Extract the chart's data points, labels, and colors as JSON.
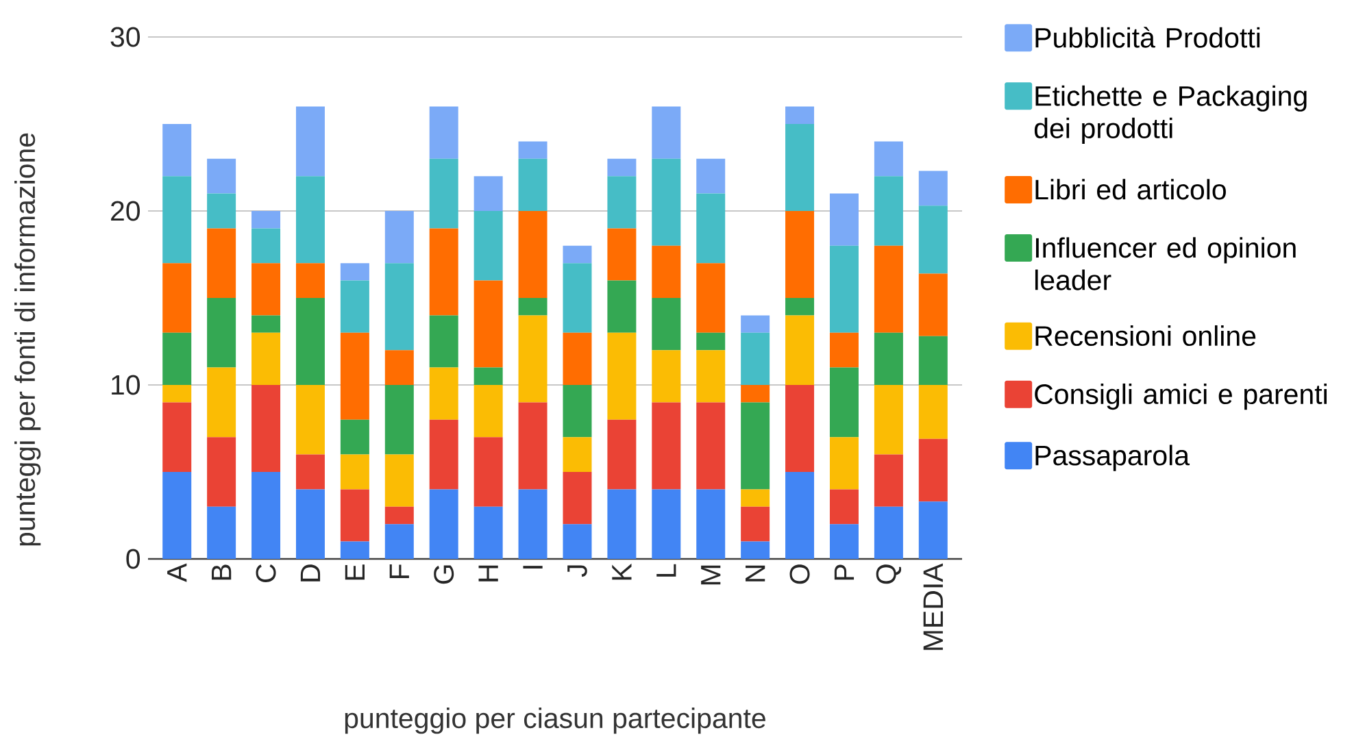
{
  "chart_data": {
    "type": "bar",
    "stacked": true,
    "xlabel": "punteggio per ciasun partecipante",
    "ylabel": "punteggi per fonti di informazione",
    "categories": [
      "A",
      "B",
      "C",
      "D",
      "E",
      "F",
      "G",
      "H",
      "I",
      "J",
      "K",
      "L",
      "M",
      "N",
      "O",
      "P",
      "Q",
      "MEDIA"
    ],
    "series": [
      {
        "name": "Passaparola",
        "color": "#4285f4",
        "values": [
          5,
          3,
          5,
          4,
          1,
          2,
          4,
          3,
          4,
          2,
          4,
          4,
          4,
          1,
          5,
          2,
          3,
          3.3
        ]
      },
      {
        "name": "Consigli amici e parenti",
        "color": "#ea4335",
        "values": [
          4,
          4,
          5,
          2,
          3,
          1,
          4,
          4,
          5,
          3,
          4,
          5,
          5,
          2,
          5,
          2,
          3,
          3.6
        ]
      },
      {
        "name": "Recensioni online",
        "color": "#fbbc04",
        "values": [
          1,
          4,
          3,
          4,
          2,
          3,
          3,
          3,
          5,
          2,
          5,
          3,
          3,
          1,
          4,
          3,
          4,
          3.1
        ]
      },
      {
        "name": "Influencer ed opinion leader",
        "color": "#34a853",
        "values": [
          3,
          4,
          1,
          5,
          2,
          4,
          3,
          1,
          1,
          3,
          3,
          3,
          1,
          5,
          1,
          4,
          3,
          2.8
        ]
      },
      {
        "name": "Libri ed articolo",
        "color": "#ff6d01",
        "values": [
          4,
          4,
          3,
          2,
          5,
          2,
          5,
          5,
          5,
          3,
          3,
          3,
          4,
          1,
          5,
          2,
          5,
          3.6
        ]
      },
      {
        "name": "Etichette e Packaging dei prodotti",
        "color": "#46bdc6",
        "values": [
          5,
          2,
          2,
          5,
          3,
          5,
          4,
          4,
          3,
          4,
          3,
          5,
          4,
          3,
          5,
          5,
          4,
          3.9
        ]
      },
      {
        "name": "Pubblicità Prodotti",
        "color": "#7baaf7",
        "values": [
          3,
          2,
          1,
          4,
          1,
          3,
          3,
          2,
          1,
          1,
          1,
          3,
          2,
          1,
          1,
          3,
          2,
          2.0
        ]
      }
    ],
    "ylim": [
      0,
      30
    ],
    "yticks": [
      0,
      10,
      20,
      30
    ],
    "grid": "y",
    "legend": "right"
  }
}
